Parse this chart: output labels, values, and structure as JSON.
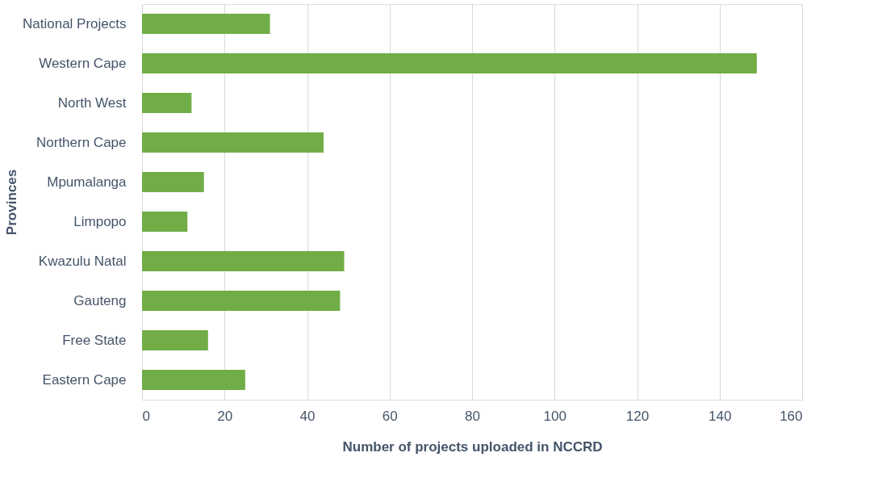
{
  "chart_data": {
    "type": "bar",
    "orientation": "horizontal",
    "categories": [
      "National Projects",
      "Western Cape",
      "North West",
      "Northern Cape",
      "Mpumalanga",
      "Limpopo",
      "Kwazulu Natal",
      "Gauteng",
      "Free State",
      "Eastern Cape"
    ],
    "values": [
      31,
      149,
      12,
      44,
      15,
      11,
      49,
      48,
      16,
      25
    ],
    "color": "#70ad47",
    "xlabel": "Number of projects uploaded in NCCRD",
    "ylabel": "Provinces",
    "xlim": [
      0,
      160
    ],
    "xticks": [
      0,
      20,
      40,
      60,
      80,
      100,
      120,
      140,
      160
    ],
    "grid": "x"
  }
}
